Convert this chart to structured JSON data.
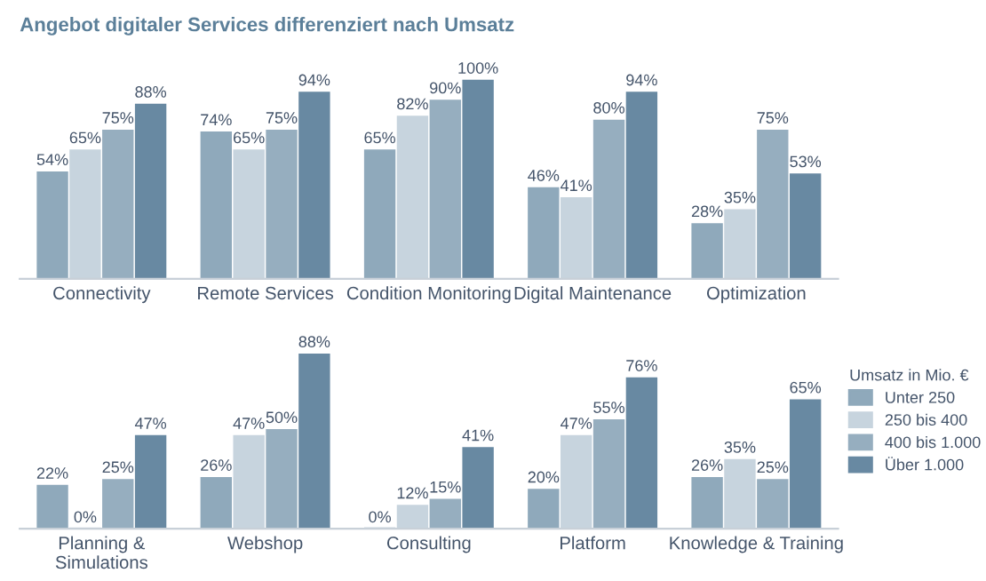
{
  "chart_data": [
    {
      "type": "bar",
      "title": "Angebot digitaler Services differenziert nach Umsatz",
      "categories": [
        "Connectivity",
        "Remote Services",
        "Condition Monitoring",
        "Digital Maintenance",
        "Optimization"
      ],
      "series": [
        {
          "color": "#8fa9bb",
          "values": [
            54,
            74,
            65,
            46,
            28
          ],
          "value_labels": [
            "54%",
            "74%",
            "65%",
            "46%",
            "28%"
          ]
        },
        {
          "color": "#c7d4de",
          "values": [
            65,
            65,
            82,
            41,
            35
          ],
          "value_labels": [
            "65%",
            "65%",
            "82%",
            "41%",
            "35%"
          ]
        },
        {
          "color": "#96aebf",
          "values": [
            75,
            75,
            90,
            80,
            75
          ],
          "value_labels": [
            "75%",
            "75%",
            "90%",
            "80%",
            "75%"
          ]
        },
        {
          "color": "#6889a2",
          "values": [
            88,
            94,
            100,
            94,
            53
          ],
          "value_labels": [
            "88%",
            "94%",
            "100%",
            "94%",
            "53%"
          ]
        }
      ]
    },
    {
      "type": "bar",
      "legend": "right",
      "legend_title": "Umsatz in Mio. €",
      "categories": [
        "Planning &\nSimulations",
        "Webshop",
        "Consulting",
        "Platform",
        "Knowledge & Training"
      ],
      "series": [
        {
          "name": "Unter 250",
          "color": "#8fa9bb",
          "values": [
            22,
            26,
            0,
            20,
            26
          ],
          "value_labels": [
            "22%",
            "26%",
            "0%",
            "20%",
            "26%"
          ]
        },
        {
          "name": "250 bis 400",
          "color": "#c7d4de",
          "values": [
            0,
            47,
            12,
            47,
            35
          ],
          "value_labels": [
            "0%",
            "47%",
            "12%",
            "47%",
            "35%"
          ]
        },
        {
          "name": "400 bis 1.000",
          "color": "#96aebf",
          "values": [
            25,
            50,
            15,
            55,
            25
          ],
          "value_labels": [
            "25%",
            "50%",
            "15%",
            "55%",
            "25%"
          ]
        },
        {
          "name": "Über 1.000",
          "color": "#6889a2",
          "values": [
            47,
            88,
            41,
            76,
            65
          ],
          "value_labels": [
            "47%",
            "88%",
            "41%",
            "76%",
            "65%"
          ]
        }
      ]
    }
  ]
}
